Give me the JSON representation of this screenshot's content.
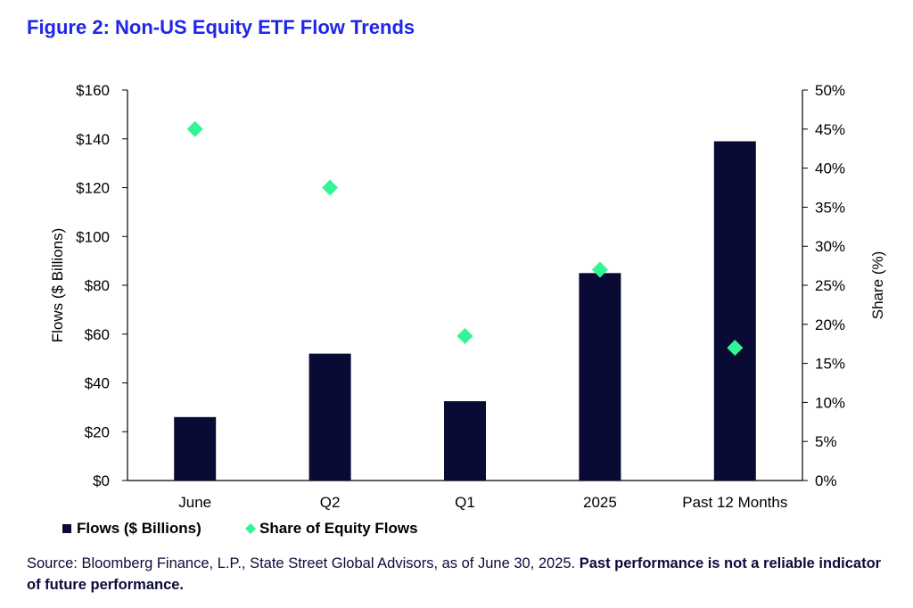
{
  "figure": {
    "title": "Figure 2: Non-US Equity ETF Flow Trends"
  },
  "chart_data": {
    "type": "bar",
    "categories": [
      "June",
      "Q2",
      "Q1",
      "2025",
      "Past 12 Months"
    ],
    "series": [
      {
        "name": "Flows ($ Billions)",
        "type": "bar",
        "axis": "left",
        "values": [
          26,
          52,
          32.5,
          85,
          139
        ]
      },
      {
        "name": "Share of Equity Flows",
        "type": "scatter",
        "axis": "right",
        "values": [
          45,
          37.5,
          18.5,
          27,
          17
        ]
      }
    ],
    "ylabel": "Flows ($ Billions)",
    "ylabel_right": "Share (%)",
    "ylim": [
      0,
      160
    ],
    "ylim_right": [
      0,
      50
    ],
    "yticks": [
      "$0",
      "$20",
      "$40",
      "$60",
      "$80",
      "$100",
      "$120",
      "$140",
      "$160"
    ],
    "yticks_right": [
      "0%",
      "5%",
      "10%",
      "15%",
      "20%",
      "25%",
      "30%",
      "35%",
      "40%",
      "45%",
      "50%"
    ],
    "grid": false,
    "legend": "bottom-left",
    "colors": {
      "bar": "#0a0b35",
      "marker": "#33f593",
      "axis": "#000000"
    }
  },
  "source": {
    "text": "Source: Bloomberg Finance, L.P., State Street Global Advisors, as of June 30, 2025. ",
    "bold": "Past performance is not a reliable indicator of future performance."
  }
}
